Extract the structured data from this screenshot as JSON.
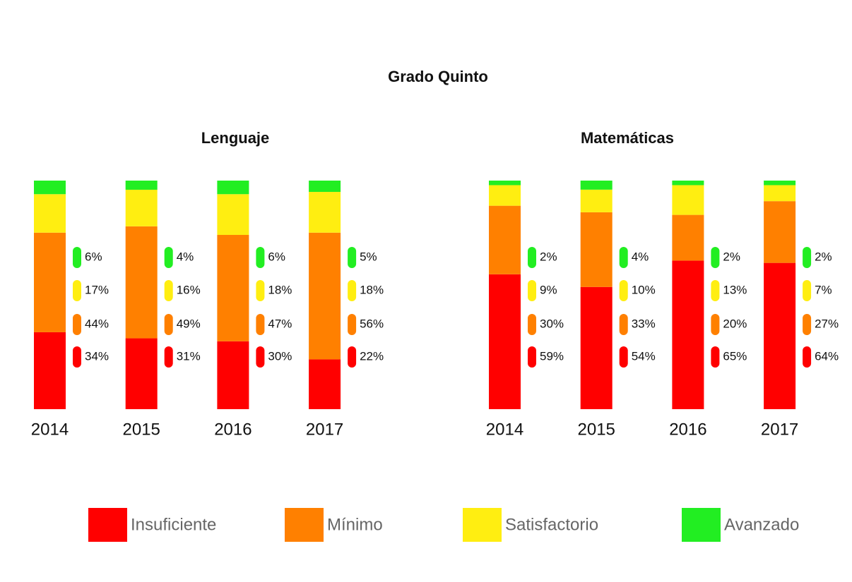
{
  "title": "Grado Quinto",
  "chart_data": [
    {
      "type": "stacked_bar",
      "title": "Lenguaje",
      "categories": [
        "2014",
        "2015",
        "2016",
        "2017"
      ],
      "series": [
        {
          "name": "Insuficiente",
          "color": "#ff0000",
          "values": [
            34,
            31,
            30,
            22
          ],
          "value_labels": [
            "34%",
            "31%",
            "30%",
            "22%"
          ]
        },
        {
          "name": "Mínimo",
          "color": "#ff8000",
          "values": [
            44,
            49,
            47,
            56
          ],
          "value_labels": [
            "44%",
            "49%",
            "47%",
            "56%"
          ]
        },
        {
          "name": "Satisfactorio",
          "color": "#ffee11",
          "values": [
            17,
            16,
            18,
            18
          ],
          "value_labels": [
            "17%",
            "16%",
            "18%",
            "18%"
          ]
        },
        {
          "name": "Avanzado",
          "color": "#22ee22",
          "values": [
            6,
            4,
            6,
            5
          ],
          "value_labels": [
            "6%",
            "4%",
            "6%",
            "5%"
          ]
        }
      ]
    },
    {
      "type": "stacked_bar",
      "title": "Matemáticas",
      "categories": [
        "2014",
        "2015",
        "2016",
        "2017"
      ],
      "series": [
        {
          "name": "Insuficiente",
          "color": "#ff0000",
          "values": [
            59,
            54,
            65,
            64
          ],
          "value_labels": [
            "59%",
            "54%",
            "65%",
            "64%"
          ]
        },
        {
          "name": "Mínimo",
          "color": "#ff8000",
          "values": [
            30,
            33,
            20,
            27
          ],
          "value_labels": [
            "30%",
            "33%",
            "20%",
            "27%"
          ]
        },
        {
          "name": "Satisfactorio",
          "color": "#ffee11",
          "values": [
            9,
            10,
            13,
            7
          ],
          "value_labels": [
            "9%",
            "10%",
            "13%",
            "7%"
          ]
        },
        {
          "name": "Avanzado",
          "color": "#22ee22",
          "values": [
            2,
            4,
            2,
            2
          ],
          "value_labels": [
            "2%",
            "4%",
            "2%",
            "2%"
          ]
        }
      ]
    }
  ]
}
